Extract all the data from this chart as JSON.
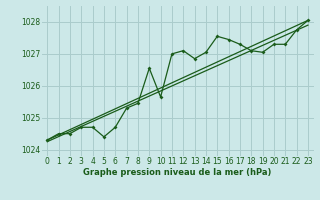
{
  "title": "Graphe pression niveau de la mer (hPa)",
  "bg_color": "#cce8e8",
  "grid_color": "#aacccc",
  "line_color": "#1a5c1a",
  "xlim": [
    -0.5,
    23.5
  ],
  "ylim": [
    1023.8,
    1028.5
  ],
  "yticks": [
    1024,
    1025,
    1026,
    1027,
    1028
  ],
  "xticks": [
    0,
    1,
    2,
    3,
    4,
    5,
    6,
    7,
    8,
    9,
    10,
    11,
    12,
    13,
    14,
    15,
    16,
    17,
    18,
    19,
    20,
    21,
    22,
    23
  ],
  "series1_x": [
    0,
    1,
    2,
    3,
    4,
    5,
    6,
    7,
    8,
    9,
    10,
    11,
    12,
    13,
    14,
    15,
    16,
    17,
    18,
    19,
    20,
    21,
    22,
    23
  ],
  "series1_y": [
    1024.3,
    1024.5,
    1024.5,
    1024.7,
    1024.7,
    1024.4,
    1024.7,
    1025.3,
    1025.45,
    1026.55,
    1025.65,
    1027.0,
    1027.1,
    1026.85,
    1027.05,
    1027.55,
    1027.45,
    1027.3,
    1027.1,
    1027.05,
    1027.3,
    1027.3,
    1027.75,
    1028.05
  ],
  "series2_x": [
    0,
    23
  ],
  "series2_y": [
    1024.3,
    1028.05
  ],
  "series3_x": [
    0,
    23
  ],
  "series3_y": [
    1024.25,
    1027.9
  ],
  "xlabel_fontsize": 6.0,
  "tick_fontsize": 5.5
}
